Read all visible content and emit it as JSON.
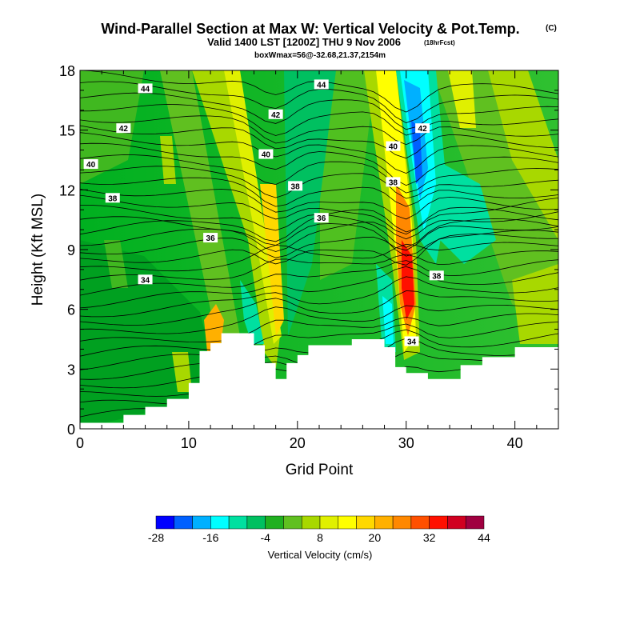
{
  "chart_data": {
    "type": "heatmap",
    "title": "Wind-Parallel Section at Max W: Vertical Velocity & Pot.Temp.",
    "title_mark": "(C)",
    "subtitle": "Valid 1400 LST [1200Z] THU 9 Nov 2006",
    "subtitle_note": "(18hrFcst)",
    "subtitle2": "boxWmax=56@-32.68,21.37,2154m",
    "xlabel": "Grid Point",
    "ylabel": "Height (Kft MSL)",
    "xlim": [
      0,
      44
    ],
    "ylim": [
      0,
      18
    ],
    "xticks": [
      0,
      10,
      20,
      30,
      40
    ],
    "yticks": [
      0,
      3,
      6,
      9,
      12,
      15,
      18
    ],
    "colorbar": {
      "title": "Vertical Velocity (cm/s)",
      "min": -28,
      "max": 44,
      "step": 4,
      "tick_values": [
        -28,
        -16,
        -4,
        8,
        20,
        32,
        44
      ],
      "tick_labels": [
        "-28",
        "-16",
        "-4",
        "8",
        "20",
        "32",
        "44"
      ],
      "colors": [
        "#0000ff",
        "#0060ff",
        "#00b0ff",
        "#00ffff",
        "#00e0a0",
        "#00c060",
        "#20b020",
        "#60c020",
        "#a8d800",
        "#e0f000",
        "#ffff00",
        "#ffd800",
        "#ffb000",
        "#ff8800",
        "#ff5000",
        "#ff1000",
        "#d00020",
        "#a00040"
      ]
    },
    "terrain": [
      [
        0,
        0.3
      ],
      [
        4,
        0.3
      ],
      [
        4,
        0.7
      ],
      [
        6,
        0.7
      ],
      [
        6,
        1.1
      ],
      [
        8,
        1.1
      ],
      [
        8,
        1.5
      ],
      [
        10,
        1.5
      ],
      [
        10,
        2.3
      ],
      [
        11,
        2.3
      ],
      [
        11,
        3.9
      ],
      [
        12,
        3.9
      ],
      [
        12,
        4.3
      ],
      [
        13,
        4.3
      ],
      [
        13,
        4.8
      ],
      [
        16,
        4.8
      ],
      [
        16,
        4.2
      ],
      [
        17,
        4.2
      ],
      [
        17,
        3.3
      ],
      [
        18,
        3.3
      ],
      [
        18,
        2.5
      ],
      [
        19,
        2.5
      ],
      [
        19,
        3.3
      ],
      [
        20,
        3.3
      ],
      [
        20,
        3.7
      ],
      [
        21,
        3.7
      ],
      [
        21,
        4.2
      ],
      [
        25,
        4.2
      ],
      [
        25,
        4.5
      ],
      [
        28,
        4.5
      ],
      [
        28,
        4.1
      ],
      [
        29,
        4.1
      ],
      [
        29,
        3.1
      ],
      [
        30,
        3.1
      ],
      [
        30,
        2.8
      ],
      [
        32,
        2.8
      ],
      [
        32,
        2.5
      ],
      [
        35,
        2.5
      ],
      [
        35,
        3.2
      ],
      [
        37,
        3.2
      ],
      [
        37,
        3.6
      ],
      [
        40,
        3.6
      ],
      [
        40,
        4.1
      ],
      [
        44,
        4.1
      ]
    ],
    "contour_labels": [
      {
        "value": "44",
        "x": 6,
        "y": 17.1
      },
      {
        "value": "44",
        "x": 22.2,
        "y": 17.3
      },
      {
        "value": "42",
        "x": 4,
        "y": 15.1
      },
      {
        "value": "42",
        "x": 18,
        "y": 15.8
      },
      {
        "value": "42",
        "x": 31.5,
        "y": 15.1
      },
      {
        "value": "40",
        "x": 1,
        "y": 13.3
      },
      {
        "value": "40",
        "x": 17.1,
        "y": 13.8
      },
      {
        "value": "40",
        "x": 28.8,
        "y": 14.2
      },
      {
        "value": "38",
        "x": 3,
        "y": 11.6
      },
      {
        "value": "38",
        "x": 19.8,
        "y": 12.2
      },
      {
        "value": "38",
        "x": 28.8,
        "y": 12.4
      },
      {
        "value": "38",
        "x": 32.8,
        "y": 7.7
      },
      {
        "value": "36",
        "x": 12,
        "y": 9.6
      },
      {
        "value": "36",
        "x": 22.2,
        "y": 10.6
      },
      {
        "value": "34",
        "x": 6,
        "y": 7.5
      },
      {
        "value": "34",
        "x": 30.5,
        "y": 4.4
      }
    ]
  }
}
